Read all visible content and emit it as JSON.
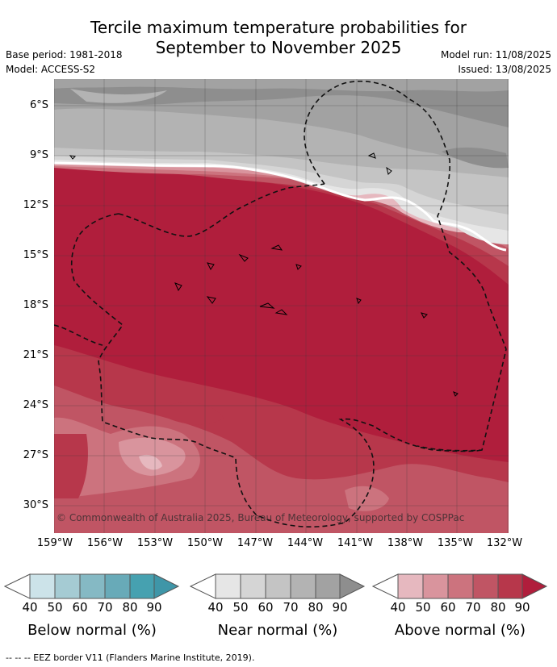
{
  "title_line1": "Tercile maximum temperature probabilities for",
  "title_line2": "September to November 2025",
  "base_period": "Base period: 1981-2018",
  "model": "Model: ACCESS-S2",
  "model_run": "Model run: 11/08/2025",
  "issued": "Issued: 13/08/2025",
  "lat_labels": [
    "6°S",
    "9°S",
    "12°S",
    "15°S",
    "18°S",
    "21°S",
    "24°S",
    "27°S",
    "30°S"
  ],
  "lon_labels": [
    "159°W",
    "156°W",
    "153°W",
    "150°W",
    "147°W",
    "144°W",
    "141°W",
    "138°W",
    "135°W",
    "132°W"
  ],
  "copyright": "© Commonwealth of Australia 2025, Bureau of Meteorology, supported by COSPPac",
  "colorbars": [
    {
      "label": "Below normal (%)",
      "ticks": [
        "40",
        "50",
        "60",
        "70",
        "80",
        "90"
      ],
      "colors": [
        "#cce3e9",
        "#a5cbd3",
        "#85b9c4",
        "#68aab8",
        "#46a1b0",
        "#3f96a8"
      ]
    },
    {
      "label": "Near normal (%)",
      "ticks": [
        "40",
        "50",
        "60",
        "70",
        "80",
        "90"
      ],
      "colors": [
        "#e6e6e6",
        "#d5d5d5",
        "#c4c4c4",
        "#b3b3b3",
        "#a2a2a2",
        "#8e8e8e"
      ]
    },
    {
      "label": "Above normal (%)",
      "ticks": [
        "40",
        "50",
        "60",
        "70",
        "80",
        "90"
      ],
      "colors": [
        "#e6b8bf",
        "#d9949d",
        "#cc737e",
        "#c05564",
        "#b7374b",
        "#b01e3c"
      ]
    }
  ],
  "footer": "--  --  -- EEZ border V11 (Flanders Marine Institute, 2019)."
}
